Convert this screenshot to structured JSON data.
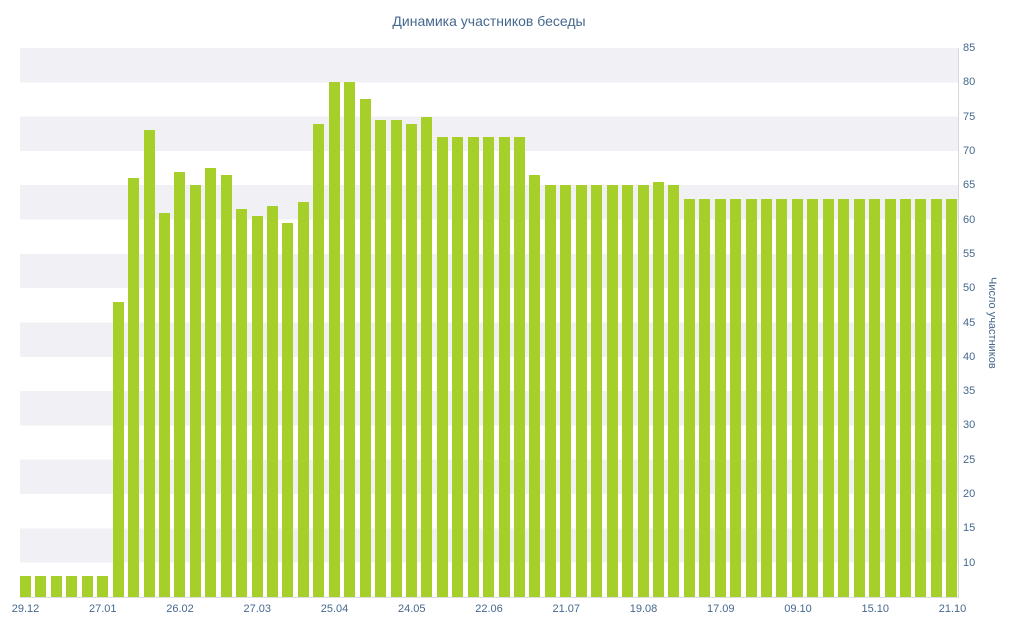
{
  "chart_data": {
    "type": "bar",
    "title": "Динамика участников беседы",
    "ylabel": "Число участников",
    "xlabel": "",
    "ylim": [
      5,
      85
    ],
    "y_ticks": [
      85,
      80,
      75,
      70,
      65,
      60,
      55,
      50,
      45,
      40,
      35,
      30,
      25,
      20,
      15,
      10
    ],
    "x_tick_labels": [
      "29.12",
      "27.01",
      "26.02",
      "27.03",
      "25.04",
      "24.05",
      "22.06",
      "21.07",
      "19.08",
      "17.09",
      "09.10",
      "15.10",
      "21.10"
    ],
    "x_label_every": 5,
    "values": [
      8,
      8,
      8,
      8,
      8,
      8,
      48,
      66,
      73,
      61,
      67,
      65,
      67.5,
      66.5,
      61.5,
      60.5,
      62,
      59.5,
      62.5,
      74,
      80,
      80,
      77.5,
      74.5,
      74.5,
      74,
      75,
      72,
      72,
      72,
      72,
      72,
      72,
      66.5,
      65,
      65,
      65,
      65,
      65,
      65,
      65,
      65.5,
      65,
      63,
      63,
      63,
      63,
      63,
      63,
      63,
      63,
      63,
      63,
      63,
      63,
      63,
      63,
      63,
      63,
      63,
      63
    ],
    "bar_color": "#a6d029",
    "stripe_color": "#f1f1f5",
    "background_color": "#ffffff",
    "text_color": "#45688e",
    "axis_color": "#d6d6de",
    "grid": "horizontal-stripes",
    "legend": "none"
  }
}
